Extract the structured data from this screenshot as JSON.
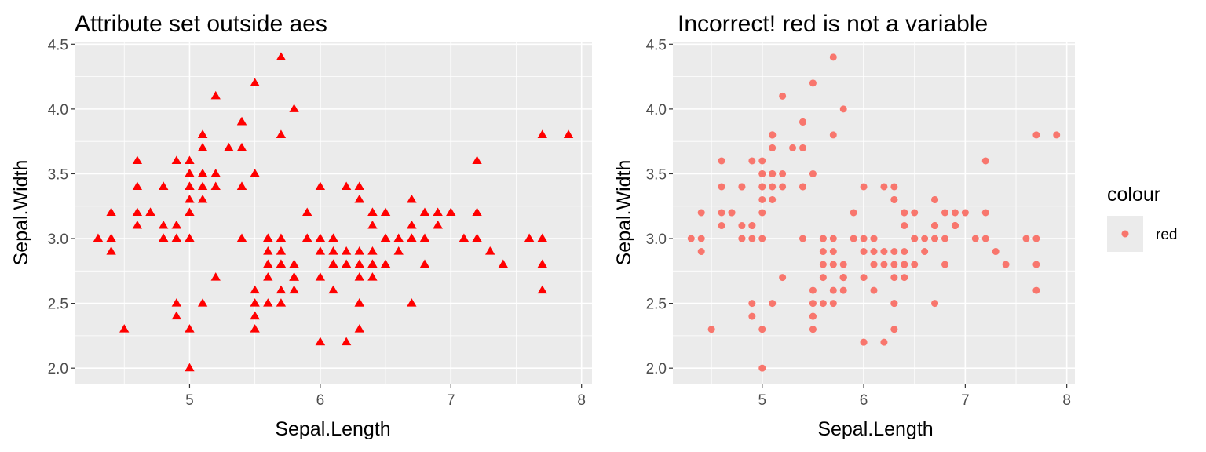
{
  "chart_data": [
    {
      "type": "scatter",
      "title": "Attribute set outside aes",
      "xlabel": "Sepal.Length",
      "ylabel": "Sepal.Width",
      "xlim": [
        4.12,
        8.08
      ],
      "ylim": [
        1.88,
        4.52
      ],
      "xticks": [
        5,
        6,
        7,
        8
      ],
      "yticks": [
        2.0,
        2.5,
        3.0,
        3.5,
        4.0,
        4.5
      ],
      "x_tick_labels": [
        "5",
        "6",
        "7",
        "8"
      ],
      "y_tick_labels": [
        "2.0",
        "2.5",
        "3.0",
        "3.5",
        "4.0",
        "4.5"
      ],
      "marker": "triangle",
      "point_color": "#ff0000",
      "panel_bg": "#ebebeb",
      "grid": true,
      "points": [
        [
          5.1,
          3.5
        ],
        [
          4.9,
          3.0
        ],
        [
          4.7,
          3.2
        ],
        [
          4.6,
          3.1
        ],
        [
          5.0,
          3.6
        ],
        [
          5.4,
          3.9
        ],
        [
          4.6,
          3.4
        ],
        [
          5.0,
          3.4
        ],
        [
          4.4,
          2.9
        ],
        [
          4.9,
          3.1
        ],
        [
          5.4,
          3.7
        ],
        [
          4.8,
          3.4
        ],
        [
          4.8,
          3.0
        ],
        [
          4.3,
          3.0
        ],
        [
          5.8,
          4.0
        ],
        [
          5.7,
          4.4
        ],
        [
          5.4,
          3.9
        ],
        [
          5.1,
          3.5
        ],
        [
          5.7,
          3.8
        ],
        [
          5.1,
          3.8
        ],
        [
          5.4,
          3.4
        ],
        [
          5.1,
          3.7
        ],
        [
          4.6,
          3.6
        ],
        [
          5.1,
          3.3
        ],
        [
          4.8,
          3.4
        ],
        [
          5.0,
          3.0
        ],
        [
          5.0,
          3.4
        ],
        [
          5.2,
          3.5
        ],
        [
          5.2,
          3.4
        ],
        [
          4.7,
          3.2
        ],
        [
          4.8,
          3.1
        ],
        [
          5.4,
          3.4
        ],
        [
          5.2,
          4.1
        ],
        [
          5.5,
          4.2
        ],
        [
          4.9,
          3.1
        ],
        [
          5.0,
          3.2
        ],
        [
          5.5,
          3.5
        ],
        [
          4.9,
          3.6
        ],
        [
          4.4,
          3.0
        ],
        [
          5.1,
          3.4
        ],
        [
          5.0,
          3.5
        ],
        [
          4.5,
          2.3
        ],
        [
          4.4,
          3.2
        ],
        [
          5.0,
          3.5
        ],
        [
          5.1,
          3.8
        ],
        [
          4.8,
          3.0
        ],
        [
          5.1,
          3.8
        ],
        [
          4.6,
          3.2
        ],
        [
          5.3,
          3.7
        ],
        [
          5.0,
          3.3
        ],
        [
          7.0,
          3.2
        ],
        [
          6.4,
          3.2
        ],
        [
          6.9,
          3.1
        ],
        [
          5.5,
          2.3
        ],
        [
          6.5,
          2.8
        ],
        [
          5.7,
          2.8
        ],
        [
          6.3,
          3.3
        ],
        [
          4.9,
          2.4
        ],
        [
          6.6,
          2.9
        ],
        [
          5.2,
          2.7
        ],
        [
          5.0,
          2.0
        ],
        [
          5.9,
          3.0
        ],
        [
          6.0,
          2.2
        ],
        [
          6.1,
          2.9
        ],
        [
          5.6,
          2.9
        ],
        [
          6.7,
          3.1
        ],
        [
          5.6,
          3.0
        ],
        [
          5.8,
          2.7
        ],
        [
          6.2,
          2.2
        ],
        [
          5.6,
          2.5
        ],
        [
          5.9,
          3.2
        ],
        [
          6.1,
          2.8
        ],
        [
          6.3,
          2.5
        ],
        [
          6.1,
          2.8
        ],
        [
          6.4,
          2.9
        ],
        [
          6.6,
          3.0
        ],
        [
          6.8,
          2.8
        ],
        [
          6.7,
          3.0
        ],
        [
          6.0,
          2.9
        ],
        [
          5.7,
          2.6
        ],
        [
          5.5,
          2.4
        ],
        [
          5.5,
          2.4
        ],
        [
          5.8,
          2.7
        ],
        [
          6.0,
          2.7
        ],
        [
          5.4,
          3.0
        ],
        [
          6.0,
          3.4
        ],
        [
          6.7,
          3.1
        ],
        [
          6.3,
          2.3
        ],
        [
          5.6,
          3.0
        ],
        [
          5.5,
          2.5
        ],
        [
          5.5,
          2.6
        ],
        [
          6.1,
          3.0
        ],
        [
          5.8,
          2.6
        ],
        [
          5.0,
          2.3
        ],
        [
          5.6,
          2.7
        ],
        [
          5.7,
          3.0
        ],
        [
          5.7,
          2.9
        ],
        [
          6.2,
          2.9
        ],
        [
          5.1,
          2.5
        ],
        [
          5.7,
          2.8
        ],
        [
          6.3,
          3.3
        ],
        [
          5.8,
          2.7
        ],
        [
          7.1,
          3.0
        ],
        [
          6.3,
          2.9
        ],
        [
          6.5,
          3.0
        ],
        [
          7.6,
          3.0
        ],
        [
          4.9,
          2.5
        ],
        [
          7.3,
          2.9
        ],
        [
          6.7,
          2.5
        ],
        [
          7.2,
          3.6
        ],
        [
          6.5,
          3.2
        ],
        [
          6.4,
          2.7
        ],
        [
          6.8,
          3.0
        ],
        [
          5.7,
          2.5
        ],
        [
          5.8,
          2.8
        ],
        [
          6.4,
          3.2
        ],
        [
          6.5,
          3.0
        ],
        [
          7.7,
          3.8
        ],
        [
          7.7,
          2.6
        ],
        [
          6.0,
          2.2
        ],
        [
          6.9,
          3.2
        ],
        [
          5.6,
          2.8
        ],
        [
          7.7,
          2.8
        ],
        [
          6.3,
          2.7
        ],
        [
          6.7,
          3.3
        ],
        [
          7.2,
          3.2
        ],
        [
          6.2,
          2.8
        ],
        [
          6.1,
          3.0
        ],
        [
          6.4,
          2.8
        ],
        [
          7.2,
          3.0
        ],
        [
          7.4,
          2.8
        ],
        [
          7.9,
          3.8
        ],
        [
          6.4,
          2.8
        ],
        [
          6.3,
          2.8
        ],
        [
          6.1,
          2.6
        ],
        [
          7.7,
          3.0
        ],
        [
          6.3,
          3.4
        ],
        [
          6.4,
          3.1
        ],
        [
          6.0,
          3.0
        ],
        [
          6.9,
          3.1
        ],
        [
          6.7,
          3.1
        ],
        [
          6.9,
          3.1
        ],
        [
          5.8,
          2.7
        ],
        [
          6.8,
          3.2
        ],
        [
          6.7,
          3.3
        ],
        [
          6.7,
          3.0
        ],
        [
          6.3,
          2.5
        ],
        [
          6.5,
          3.0
        ],
        [
          6.2,
          3.4
        ],
        [
          5.9,
          3.0
        ]
      ]
    },
    {
      "type": "scatter",
      "title": "Incorrect! red is not a variable",
      "xlabel": "Sepal.Length",
      "ylabel": "Sepal.Width",
      "xlim": [
        4.12,
        8.08
      ],
      "ylim": [
        1.88,
        4.52
      ],
      "xticks": [
        5,
        6,
        7,
        8
      ],
      "yticks": [
        2.0,
        2.5,
        3.0,
        3.5,
        4.0,
        4.5
      ],
      "x_tick_labels": [
        "5",
        "6",
        "7",
        "8"
      ],
      "y_tick_labels": [
        "2.0",
        "2.5",
        "3.0",
        "3.5",
        "4.0",
        "4.5"
      ],
      "marker": "circle",
      "point_color": "#f8766d",
      "panel_bg": "#ebebeb",
      "grid": true,
      "legend": {
        "title": "colour",
        "entries": [
          "red"
        ],
        "position": "right"
      },
      "points": "same as first panel"
    }
  ]
}
